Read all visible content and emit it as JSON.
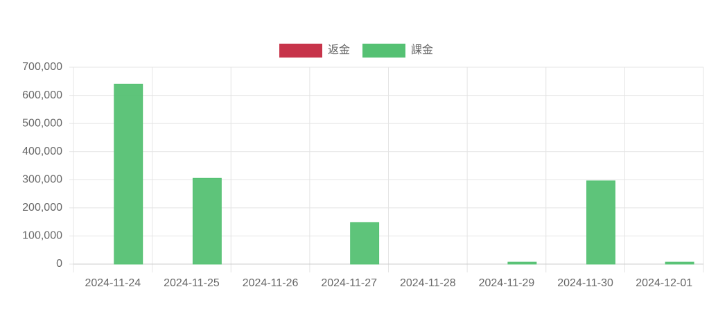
{
  "chart_data": {
    "type": "bar",
    "categories": [
      "2024-11-24",
      "2024-11-25",
      "2024-11-26",
      "2024-11-27",
      "2024-11-28",
      "2024-11-29",
      "2024-11-30",
      "2024-12-01"
    ],
    "series": [
      {
        "name": "返金",
        "color": "#c7344a",
        "values": [
          0,
          0,
          0,
          0,
          0,
          0,
          0,
          0
        ]
      },
      {
        "name": "課金",
        "color": "#55c173",
        "values": [
          640000,
          305000,
          0,
          148000,
          0,
          7000,
          296000,
          7000
        ]
      }
    ],
    "ylim": [
      0,
      700000
    ],
    "yticks": [
      0,
      {
        "value": 100000,
        "label": "100,000"
      },
      {
        "value": 200000,
        "label": "200,000"
      },
      {
        "value": 300000,
        "label": "300,000"
      },
      {
        "value": 400000,
        "label": "400,000"
      },
      {
        "value": 500000,
        "label": "500,000"
      },
      {
        "value": 600000,
        "label": "600,000"
      },
      {
        "value": 700000,
        "label": "700,000"
      }
    ],
    "grid": true,
    "legend": "top"
  }
}
